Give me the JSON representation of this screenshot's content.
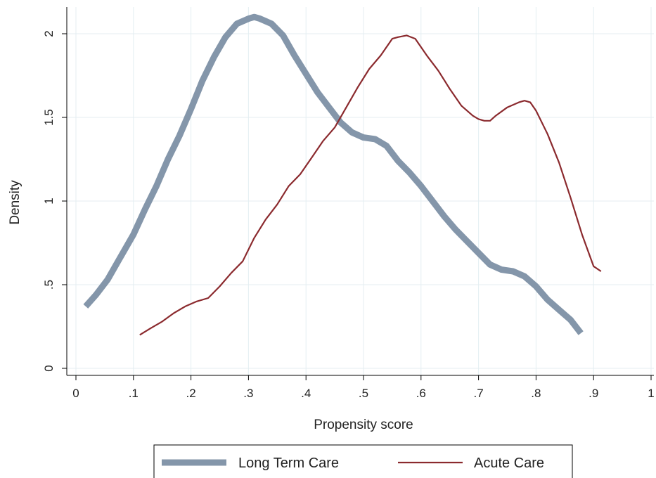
{
  "chart_data": {
    "type": "line",
    "xlabel": "Propensity score",
    "ylabel": "Density",
    "xlim": [
      0,
      1
    ],
    "ylim": [
      0,
      2.1
    ],
    "grid": true,
    "legend_position": "bottom",
    "x_ticks": [
      {
        "value": 0,
        "label": "0"
      },
      {
        "value": 0.1,
        "label": ".1"
      },
      {
        "value": 0.2,
        "label": ".2"
      },
      {
        "value": 0.3,
        "label": ".3"
      },
      {
        "value": 0.4,
        "label": ".4"
      },
      {
        "value": 0.5,
        "label": ".5"
      },
      {
        "value": 0.6,
        "label": ".6"
      },
      {
        "value": 0.7,
        "label": ".7"
      },
      {
        "value": 0.8,
        "label": ".8"
      },
      {
        "value": 0.9,
        "label": ".9"
      },
      {
        "value": 1,
        "label": "1"
      }
    ],
    "y_ticks": [
      {
        "value": 0,
        "label": "0"
      },
      {
        "value": 0.5,
        "label": ".5"
      },
      {
        "value": 1,
        "label": "1"
      },
      {
        "value": 1.5,
        "label": "1.5"
      },
      {
        "value": 2,
        "label": "2"
      }
    ],
    "series": [
      {
        "name": "Long Term Care",
        "color": "#8496aa",
        "style": "thick",
        "x": [
          0.017,
          0.035,
          0.055,
          0.075,
          0.1,
          0.12,
          0.14,
          0.16,
          0.18,
          0.2,
          0.22,
          0.24,
          0.26,
          0.28,
          0.3,
          0.31,
          0.32,
          0.34,
          0.36,
          0.38,
          0.4,
          0.42,
          0.44,
          0.46,
          0.48,
          0.5,
          0.52,
          0.54,
          0.56,
          0.58,
          0.6,
          0.62,
          0.64,
          0.66,
          0.68,
          0.7,
          0.72,
          0.74,
          0.76,
          0.78,
          0.8,
          0.82,
          0.84,
          0.86,
          0.878
        ],
        "y": [
          0.37,
          0.44,
          0.53,
          0.65,
          0.8,
          0.95,
          1.09,
          1.25,
          1.39,
          1.55,
          1.72,
          1.86,
          1.98,
          2.06,
          2.09,
          2.1,
          2.09,
          2.06,
          1.99,
          1.87,
          1.76,
          1.65,
          1.56,
          1.47,
          1.41,
          1.38,
          1.37,
          1.33,
          1.24,
          1.17,
          1.09,
          1.0,
          0.91,
          0.83,
          0.76,
          0.69,
          0.62,
          0.59,
          0.58,
          0.55,
          0.49,
          0.41,
          0.35,
          0.29,
          0.21
        ]
      },
      {
        "name": "Acute Care",
        "color": "#8b2a2e",
        "style": "thin",
        "x": [
          0.111,
          0.13,
          0.15,
          0.17,
          0.19,
          0.21,
          0.23,
          0.25,
          0.27,
          0.29,
          0.31,
          0.33,
          0.35,
          0.37,
          0.39,
          0.41,
          0.43,
          0.45,
          0.47,
          0.49,
          0.51,
          0.53,
          0.55,
          0.56,
          0.575,
          0.59,
          0.61,
          0.63,
          0.65,
          0.67,
          0.69,
          0.7,
          0.71,
          0.72,
          0.73,
          0.75,
          0.77,
          0.78,
          0.79,
          0.8,
          0.82,
          0.84,
          0.86,
          0.88,
          0.9,
          0.913
        ],
        "y": [
          0.2,
          0.24,
          0.28,
          0.33,
          0.37,
          0.4,
          0.42,
          0.49,
          0.57,
          0.64,
          0.78,
          0.89,
          0.98,
          1.09,
          1.16,
          1.26,
          1.36,
          1.44,
          1.56,
          1.68,
          1.79,
          1.87,
          1.97,
          1.98,
          1.99,
          1.97,
          1.87,
          1.78,
          1.67,
          1.57,
          1.51,
          1.49,
          1.48,
          1.48,
          1.51,
          1.56,
          1.59,
          1.6,
          1.59,
          1.54,
          1.4,
          1.23,
          1.02,
          0.8,
          0.61,
          0.58
        ]
      }
    ]
  }
}
